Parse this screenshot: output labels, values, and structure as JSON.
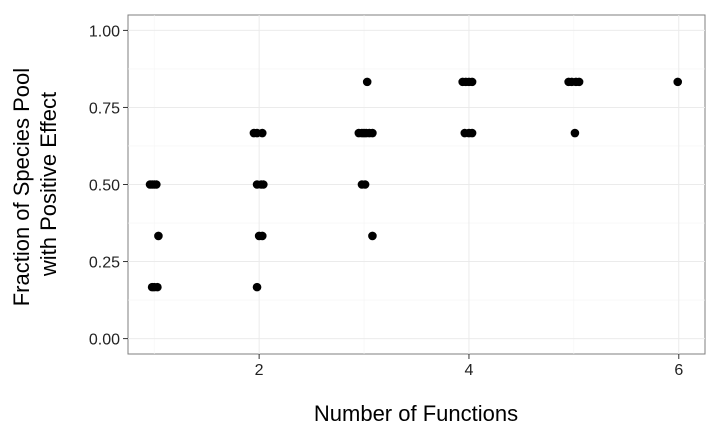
{
  "chart_data": {
    "type": "scatter",
    "title": "",
    "xlabel": "Number of Functions",
    "ylabel_lines": [
      "Fraction of Species Pool",
      "with Positive Effect"
    ],
    "xlim": [
      0.75,
      6.25
    ],
    "ylim": [
      -0.05,
      1.05
    ],
    "x_ticks": [
      2,
      4,
      6
    ],
    "x_tick_labels": [
      "2",
      "4",
      "6"
    ],
    "y_ticks": [
      0,
      0.25,
      0.5,
      0.75,
      1
    ],
    "y_tick_labels": [
      "0.00",
      "0.25",
      "0.50",
      "0.75",
      "1.00"
    ],
    "grid": true,
    "point_color": "#000000",
    "points": [
      {
        "x": 0.96,
        "y": 0.5
      },
      {
        "x": 0.98,
        "y": 0.5
      },
      {
        "x": 1.0,
        "y": 0.5
      },
      {
        "x": 1.02,
        "y": 0.5
      },
      {
        "x": 1.04,
        "y": 0.333
      },
      {
        "x": 0.98,
        "y": 0.167
      },
      {
        "x": 1.0,
        "y": 0.167
      },
      {
        "x": 1.03,
        "y": 0.167
      },
      {
        "x": 1.95,
        "y": 0.667
      },
      {
        "x": 1.98,
        "y": 0.667
      },
      {
        "x": 2.03,
        "y": 0.667
      },
      {
        "x": 1.98,
        "y": 0.5
      },
      {
        "x": 2.02,
        "y": 0.5
      },
      {
        "x": 2.04,
        "y": 0.5
      },
      {
        "x": 2.0,
        "y": 0.333
      },
      {
        "x": 2.03,
        "y": 0.333
      },
      {
        "x": 1.98,
        "y": 0.167
      },
      {
        "x": 3.03,
        "y": 0.833
      },
      {
        "x": 2.95,
        "y": 0.667
      },
      {
        "x": 2.98,
        "y": 0.667
      },
      {
        "x": 3.0,
        "y": 0.667
      },
      {
        "x": 3.02,
        "y": 0.667
      },
      {
        "x": 3.05,
        "y": 0.667
      },
      {
        "x": 3.08,
        "y": 0.667
      },
      {
        "x": 2.98,
        "y": 0.5
      },
      {
        "x": 3.01,
        "y": 0.5
      },
      {
        "x": 3.08,
        "y": 0.333
      },
      {
        "x": 3.94,
        "y": 0.833
      },
      {
        "x": 3.97,
        "y": 0.833
      },
      {
        "x": 4.0,
        "y": 0.833
      },
      {
        "x": 4.03,
        "y": 0.833
      },
      {
        "x": 3.96,
        "y": 0.667
      },
      {
        "x": 4.0,
        "y": 0.667
      },
      {
        "x": 4.03,
        "y": 0.667
      },
      {
        "x": 4.95,
        "y": 0.833
      },
      {
        "x": 4.98,
        "y": 0.833
      },
      {
        "x": 5.02,
        "y": 0.833
      },
      {
        "x": 5.05,
        "y": 0.833
      },
      {
        "x": 5.01,
        "y": 0.667
      },
      {
        "x": 5.99,
        "y": 0.833
      }
    ]
  }
}
